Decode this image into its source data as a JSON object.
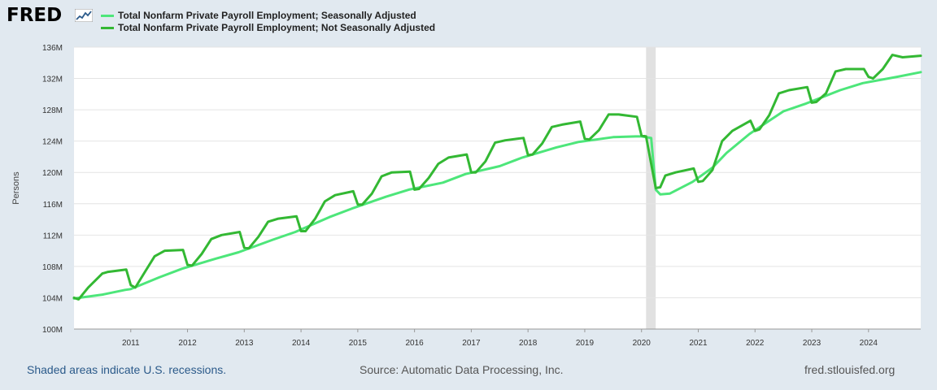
{
  "header": {
    "logo_text": "FRED"
  },
  "legend": [
    {
      "label": "Total Nonfarm Private Payroll Employment; Seasonally Adjusted",
      "color": "#4de67a"
    },
    {
      "label": "Total Nonfarm Private Payroll Employment; Not Seasonally Adjusted",
      "color": "#33b833"
    }
  ],
  "footer": {
    "recession_note": "Shaded areas indicate U.S. recessions.",
    "source": "Source: Automatic Data Processing, Inc.",
    "site": "fred.stlouisfed.org"
  },
  "chart_data": {
    "type": "line",
    "title": "",
    "xlabel": "",
    "ylabel": "Persons",
    "ylim": [
      100,
      136
    ],
    "xlim": [
      2010.0,
      2024.92
    ],
    "yticks": [
      100,
      104,
      108,
      112,
      116,
      120,
      124,
      128,
      132,
      136
    ],
    "ytick_labels": [
      "100M",
      "104M",
      "108M",
      "112M",
      "116M",
      "120M",
      "124M",
      "128M",
      "132M",
      "136M"
    ],
    "xticks": [
      2011,
      2012,
      2013,
      2014,
      2015,
      2016,
      2017,
      2018,
      2019,
      2020,
      2021,
      2022,
      2023,
      2024
    ],
    "xtick_labels": [
      "2011",
      "2012",
      "2013",
      "2014",
      "2015",
      "2016",
      "2017",
      "2018",
      "2019",
      "2020",
      "2021",
      "2022",
      "2023",
      "2024"
    ],
    "recessions": [
      [
        2020.08,
        2020.25
      ]
    ],
    "grid": true,
    "series": [
      {
        "name": "Total Nonfarm Private Payroll Employment; Seasonally Adjusted",
        "color": "#4de67a",
        "x": [
          2010.0,
          2010.5,
          2010.9,
          2011.0,
          2011.5,
          2011.9,
          2012.5,
          2012.9,
          2013.5,
          2013.9,
          2014.5,
          2014.9,
          2015.5,
          2015.9,
          2016.5,
          2016.9,
          2017.5,
          2017.9,
          2018.5,
          2018.9,
          2019.5,
          2019.9,
          2020.0,
          2020.17,
          2020.25,
          2020.33,
          2020.5,
          2020.9,
          2021.25,
          2021.5,
          2021.9,
          2022.25,
          2022.5,
          2022.9,
          2023.5,
          2023.9,
          2024.5,
          2024.92
        ],
        "values": [
          103.9,
          104.4,
          105.0,
          105.1,
          106.6,
          107.7,
          109.0,
          109.8,
          111.4,
          112.4,
          114.3,
          115.4,
          116.9,
          117.8,
          118.7,
          119.8,
          120.8,
          121.9,
          123.2,
          123.9,
          124.5,
          124.6,
          124.6,
          124.4,
          117.8,
          117.2,
          117.3,
          118.8,
          120.6,
          122.5,
          124.9,
          126.6,
          127.8,
          128.8,
          130.5,
          131.4,
          132.2,
          132.8
        ]
      },
      {
        "name": "Total Nonfarm Private Payroll Employment; Not Seasonally Adjusted",
        "color": "#33b833",
        "x": [
          2010.0,
          2010.08,
          2010.25,
          2010.5,
          2010.6,
          2010.92,
          2011.0,
          2011.08,
          2011.25,
          2011.42,
          2011.6,
          2011.92,
          2012.0,
          2012.08,
          2012.25,
          2012.42,
          2012.6,
          2012.92,
          2013.0,
          2013.08,
          2013.25,
          2013.42,
          2013.6,
          2013.92,
          2014.0,
          2014.08,
          2014.25,
          2014.42,
          2014.6,
          2014.92,
          2015.0,
          2015.08,
          2015.25,
          2015.42,
          2015.6,
          2015.92,
          2016.0,
          2016.08,
          2016.25,
          2016.42,
          2016.6,
          2016.92,
          2017.0,
          2017.08,
          2017.25,
          2017.42,
          2017.6,
          2017.92,
          2018.0,
          2018.08,
          2018.25,
          2018.42,
          2018.6,
          2018.92,
          2019.0,
          2019.08,
          2019.25,
          2019.42,
          2019.6,
          2019.92,
          2020.0,
          2020.08,
          2020.25,
          2020.33,
          2020.42,
          2020.6,
          2020.92,
          2021.0,
          2021.08,
          2021.25,
          2021.42,
          2021.6,
          2021.92,
          2022.0,
          2022.08,
          2022.25,
          2022.42,
          2022.6,
          2022.92,
          2023.0,
          2023.08,
          2023.25,
          2023.42,
          2023.6,
          2023.92,
          2024.0,
          2024.08,
          2024.25,
          2024.42,
          2024.6,
          2024.92
        ],
        "values": [
          104.0,
          103.8,
          105.3,
          107.1,
          107.3,
          107.6,
          105.6,
          105.3,
          107.3,
          109.3,
          110.0,
          110.1,
          108.2,
          108.1,
          109.6,
          111.5,
          112.0,
          112.4,
          110.4,
          110.3,
          111.8,
          113.7,
          114.1,
          114.4,
          112.5,
          112.5,
          114.1,
          116.3,
          117.1,
          117.6,
          115.9,
          115.9,
          117.3,
          119.5,
          120.0,
          120.1,
          117.8,
          117.9,
          119.3,
          121.1,
          121.9,
          122.3,
          120.0,
          120.0,
          121.4,
          123.8,
          124.1,
          124.4,
          122.2,
          122.3,
          123.7,
          125.8,
          126.1,
          126.5,
          124.3,
          124.2,
          125.4,
          127.4,
          127.4,
          127.1,
          124.7,
          124.6,
          118.0,
          118.1,
          119.6,
          120.0,
          120.5,
          118.8,
          118.9,
          120.3,
          124.0,
          125.3,
          126.6,
          125.3,
          125.5,
          127.3,
          130.1,
          130.5,
          130.9,
          128.9,
          129.0,
          130.1,
          132.9,
          133.2,
          133.2,
          132.2,
          132.0,
          133.2,
          135.0,
          134.7,
          134.9
        ]
      }
    ]
  }
}
